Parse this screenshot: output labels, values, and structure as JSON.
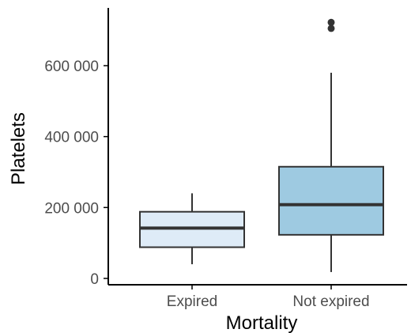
{
  "chart_data": {
    "type": "box",
    "xlabel": "Mortality",
    "ylabel": "Platelets",
    "ylim": [
      0,
      750000
    ],
    "grid": false,
    "y_ticks": [
      0,
      200000,
      400000,
      600000
    ],
    "y_tick_labels": [
      "0",
      "200 000",
      "400 000",
      "600 000"
    ],
    "categories": [
      "Expired",
      "Not expired"
    ],
    "boxes": [
      {
        "category": "Expired",
        "whisker_low": 40000,
        "q1": 88000,
        "median": 142000,
        "q3": 188000,
        "whisker_high": 240000,
        "outliers": [],
        "fill": "#deebf7"
      },
      {
        "category": "Not expired",
        "whisker_low": 18000,
        "q1": 123000,
        "median": 208000,
        "q3": 315000,
        "whisker_high": 580000,
        "outliers": [
          705000,
          722000
        ],
        "fill": "#9ecae1"
      }
    ],
    "colors": {
      "box_stroke": "#333333",
      "median": "#333333",
      "outlier": "#333333",
      "axis": "#000000"
    }
  }
}
